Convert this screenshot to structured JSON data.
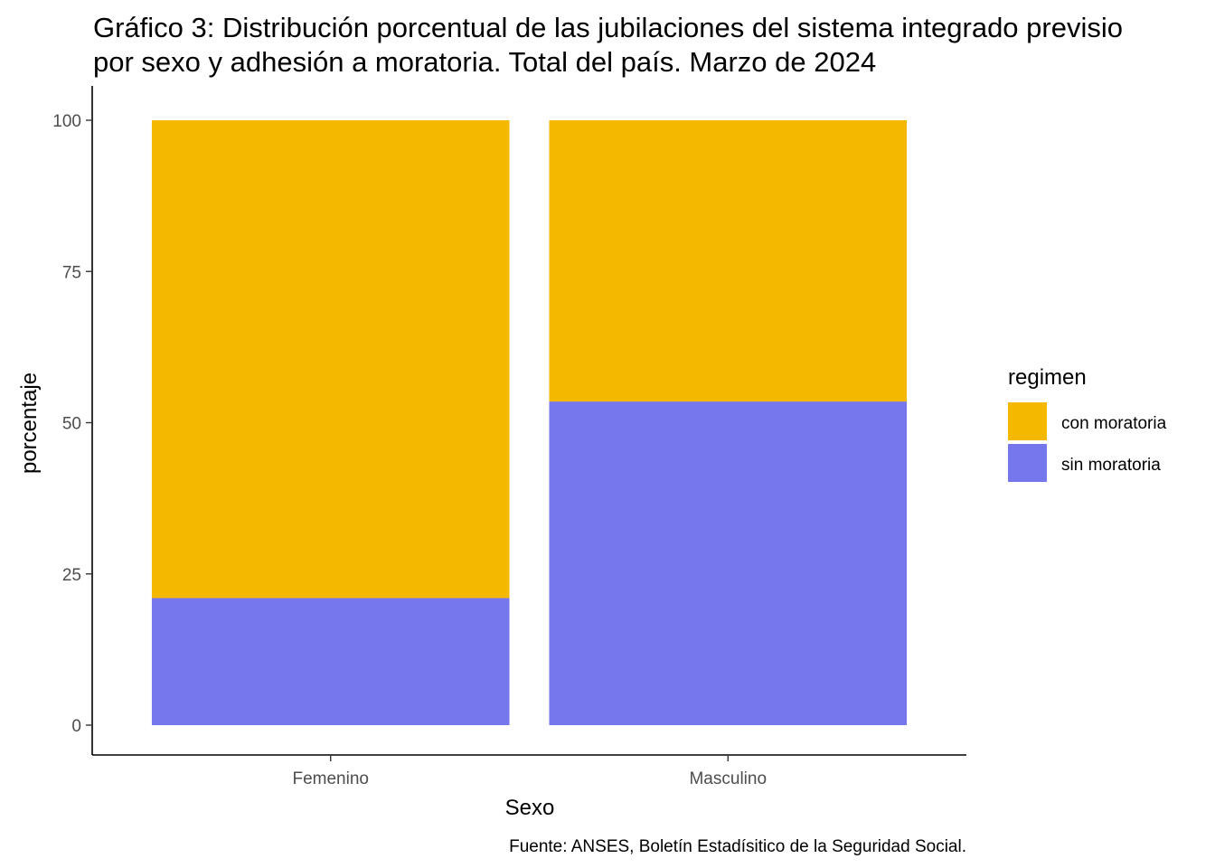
{
  "chart_data": {
    "type": "bar",
    "stacked": true,
    "title_lines": [
      "Gráfico 3: Distribución porcentual de las jubilaciones del sistema integrado previsio",
      "por sexo y adhesión a moratoria. Total del país. Marzo de 2024"
    ],
    "xlabel": "Sexo",
    "ylabel": "porcentaje",
    "categories": [
      "Femenino",
      "Masculino"
    ],
    "series": [
      {
        "name": "sin moratoria",
        "color": "#7677ED",
        "values": [
          21,
          53.5
        ]
      },
      {
        "name": "con moratoria",
        "color": "#F5B800",
        "values": [
          79,
          46.5
        ]
      }
    ],
    "ylim": [
      0,
      100
    ],
    "yticks": [
      0,
      25,
      50,
      75,
      100
    ],
    "legend": {
      "title": "regimen",
      "position": "right",
      "entries": [
        {
          "label": "con moratoria",
          "color": "#F5B800"
        },
        {
          "label": "sin moratoria",
          "color": "#7677ED"
        }
      ]
    },
    "grid": false,
    "caption": "Fuente: ANSES, Boletín Estadísitico de la Seguridad Social."
  }
}
